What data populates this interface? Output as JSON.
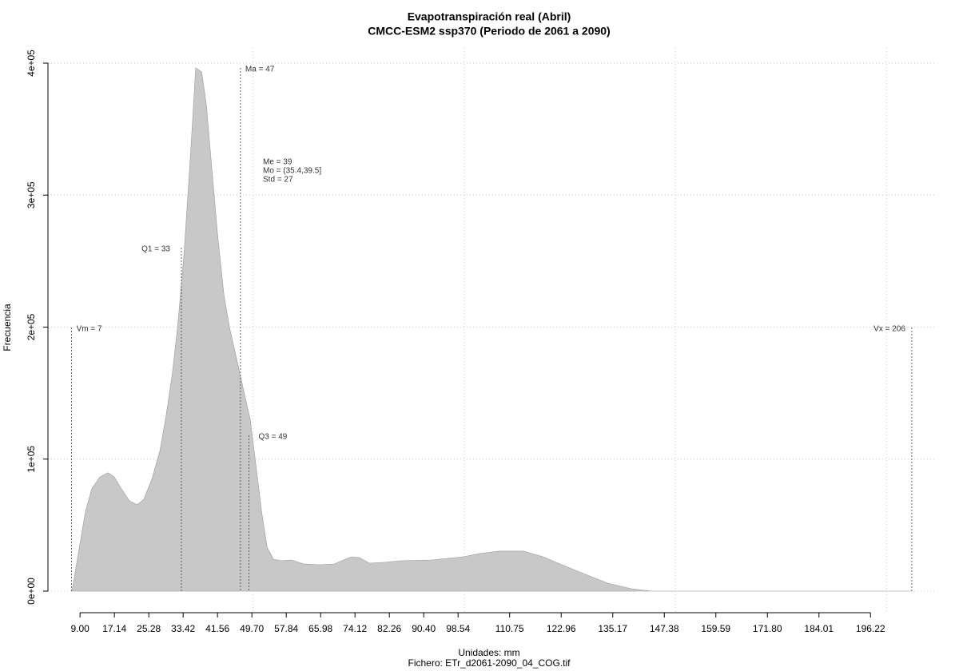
{
  "chart_data": {
    "type": "area",
    "title": "Evapotranspiración real (Abril)",
    "subtitle": "CMCC-ESM2 ssp370 (Periodo de 2061 a 2090)",
    "x_label": "Unidades: mm",
    "caption": "Fichero: ETr_d2061-2090_04_COG.tif",
    "y_label": "Frecuencia",
    "color": "#c8c8c8",
    "grid": true,
    "xlim": [
      1.4,
      211.5
    ],
    "ylim": [
      0,
      400000
    ],
    "xgrid": [
      50,
      100,
      150,
      200
    ],
    "xticks": [
      {
        "value": 9,
        "label": "9.00"
      },
      17.14,
      25.28,
      33.42,
      41.56,
      {
        "value": 49.7,
        "label": "49.70"
      },
      57.84,
      65.98,
      74.12,
      82.26,
      {
        "value": 90.4,
        "label": "90.40"
      },
      98.54,
      110.75,
      122.96,
      135.17,
      147.38,
      159.59,
      {
        "value": 171.8,
        "label": "171.80"
      },
      184.01,
      196.22
    ],
    "yticks": [
      {
        "value": 0,
        "label": "0e+00"
      },
      {
        "value": 100000,
        "label": "1e+05"
      },
      {
        "value": 200000,
        "label": "2e+05"
      },
      {
        "value": 300000,
        "label": "3e+05"
      },
      {
        "value": 400000,
        "label": "4e+05"
      }
    ],
    "x": [
      7.1,
      9,
      10.3,
      11.8,
      13.7,
      15.6,
      17.1,
      18.8,
      20.7,
      22.6,
      24.1,
      26.0,
      27.9,
      29.4,
      30.8,
      32.1,
      33.6,
      35.1,
      36.4,
      37.8,
      38.9,
      40.2,
      41.5,
      43.1,
      44.4,
      45.9,
      47.8,
      49.3,
      50.6,
      52.0,
      53.3,
      54.8,
      56.7,
      59.1,
      62.0,
      65.8,
      69.2,
      71.4,
      73.3,
      75.2,
      77.5,
      80.9,
      84.7,
      92.3,
      99.8,
      103.6,
      108.3,
      114.0,
      118.7,
      123.5,
      129.2,
      133.9,
      139.6,
      144.3,
      206
    ],
    "values": [
      0,
      36300,
      60500,
      77500,
      86500,
      89600,
      86500,
      77500,
      68400,
      65400,
      69600,
      84700,
      105900,
      133100,
      163400,
      199700,
      254200,
      326800,
      396400,
      393300,
      369100,
      320700,
      272300,
      223900,
      199700,
      178500,
      151300,
      130100,
      96800,
      60500,
      33300,
      24200,
      23000,
      23600,
      20600,
      20000,
      20600,
      23600,
      26000,
      25400,
      21200,
      21800,
      23000,
      23600,
      26000,
      28400,
      30300,
      30300,
      26000,
      19400,
      12100,
      6100,
      1800,
      0,
      0
    ],
    "markers": [
      {
        "label": "Vm = 7",
        "value": 7
      },
      {
        "label": "Q1 = 33",
        "value": 33
      },
      {
        "label": "Ma = 47",
        "value": 47
      },
      {
        "label": "Q3 = 49",
        "value": 49
      },
      {
        "label": "Vx = 206",
        "value": 206
      }
    ],
    "stats": [
      "Me = 39",
      "Mo = (35.4,39.5]",
      "Std = 27"
    ]
  }
}
